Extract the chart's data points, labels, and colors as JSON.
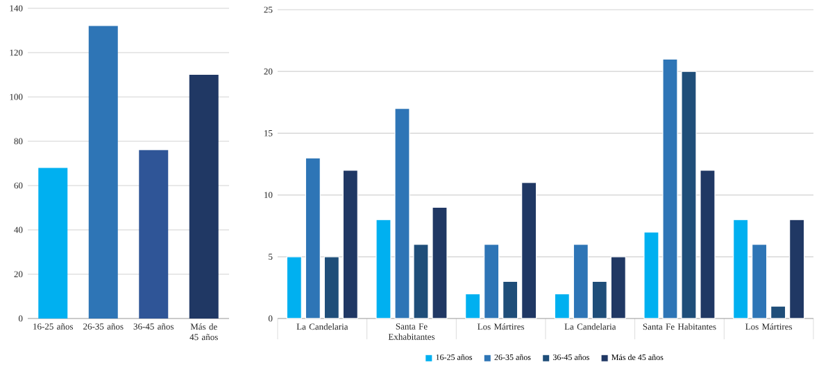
{
  "chart_data": [
    {
      "type": "bar",
      "categories": [
        "16-25 años",
        "26-35 años",
        "36-45 años",
        "Más de 45 años"
      ],
      "values": [
        68,
        132,
        76,
        110
      ],
      "colors": [
        "#00b0f0",
        "#2e75b6",
        "#2f5597",
        "#203864"
      ],
      "ylim": [
        0,
        140
      ],
      "yticks": [
        0,
        20,
        40,
        60,
        80,
        100,
        120,
        140
      ],
      "grid": "y"
    },
    {
      "type": "bar",
      "categories": [
        "La Candelaria",
        "Santa Fe Exhabitantes",
        "Los Mártires",
        "La Candelaria",
        "Santa Fe Habitantes",
        "Los Mártires"
      ],
      "series": [
        {
          "name": "16-25 años",
          "color": "#00b0f0",
          "values": [
            5,
            8,
            2,
            2,
            7,
            8
          ]
        },
        {
          "name": "26-35 años",
          "color": "#2e75b6",
          "values": [
            13,
            17,
            6,
            6,
            21,
            6
          ]
        },
        {
          "name": "36-45 años",
          "color": "#1f4e79",
          "values": [
            5,
            6,
            3,
            3,
            20,
            1
          ]
        },
        {
          "name": "Más de 45 años",
          "color": "#203864",
          "values": [
            12,
            9,
            11,
            5,
            12,
            8
          ]
        }
      ],
      "ylim": [
        0,
        25
      ],
      "yticks": [
        0,
        5,
        10,
        15,
        20,
        25
      ],
      "grid": "y",
      "legend": "bottom"
    }
  ]
}
